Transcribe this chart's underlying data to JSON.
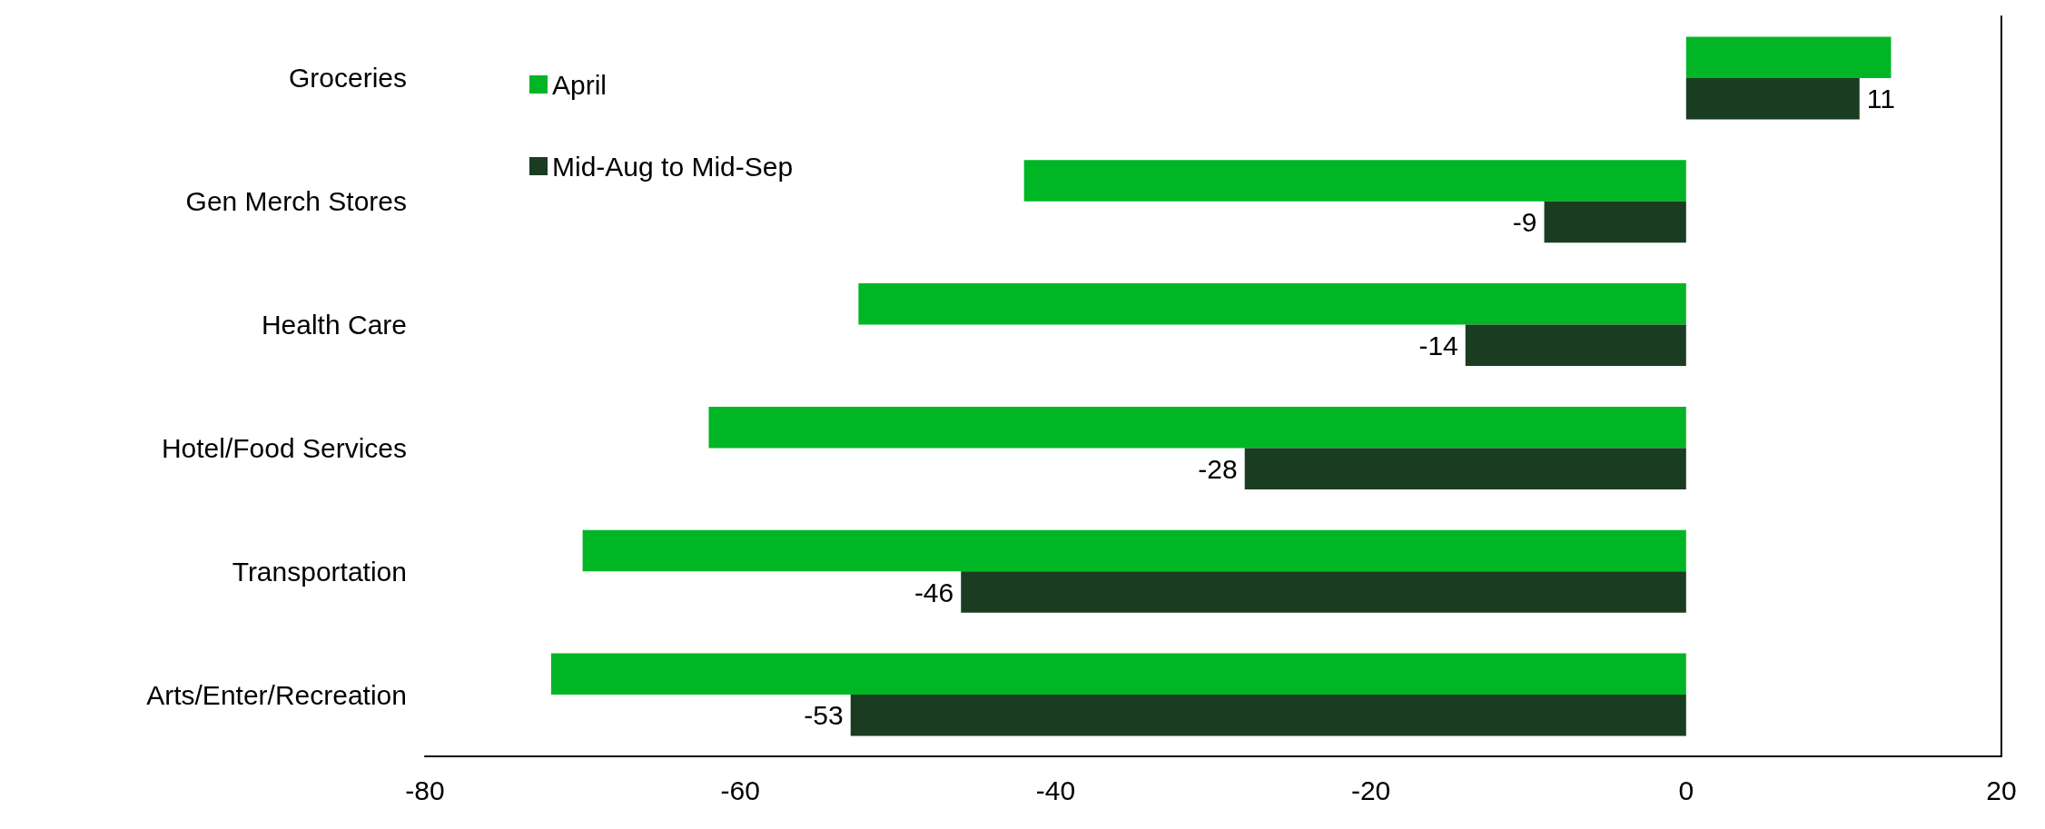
{
  "chart_data": {
    "type": "bar",
    "orientation": "horizontal",
    "categories": [
      "Groceries",
      "Gen Merch Stores",
      "Health Care",
      "Hotel/Food Services",
      "Transportation",
      "Arts/Enter/Recreation"
    ],
    "series": [
      {
        "name": "April",
        "color": "#00b624",
        "values": [
          13,
          -42,
          -52.5,
          -62,
          -70,
          -72
        ]
      },
      {
        "name": "Mid-Aug to Mid-Sep",
        "color": "#1a3d22",
        "values": [
          11,
          -9,
          -14,
          -28,
          -46,
          -53
        ],
        "value_labels": [
          "11",
          "-9",
          "-14",
          "-28",
          "-46",
          "-53"
        ]
      }
    ],
    "xlim": [
      -80,
      20
    ],
    "xticks": [
      -80,
      -60,
      -40,
      -20,
      0,
      20
    ],
    "grid": false,
    "legend": "top left"
  }
}
